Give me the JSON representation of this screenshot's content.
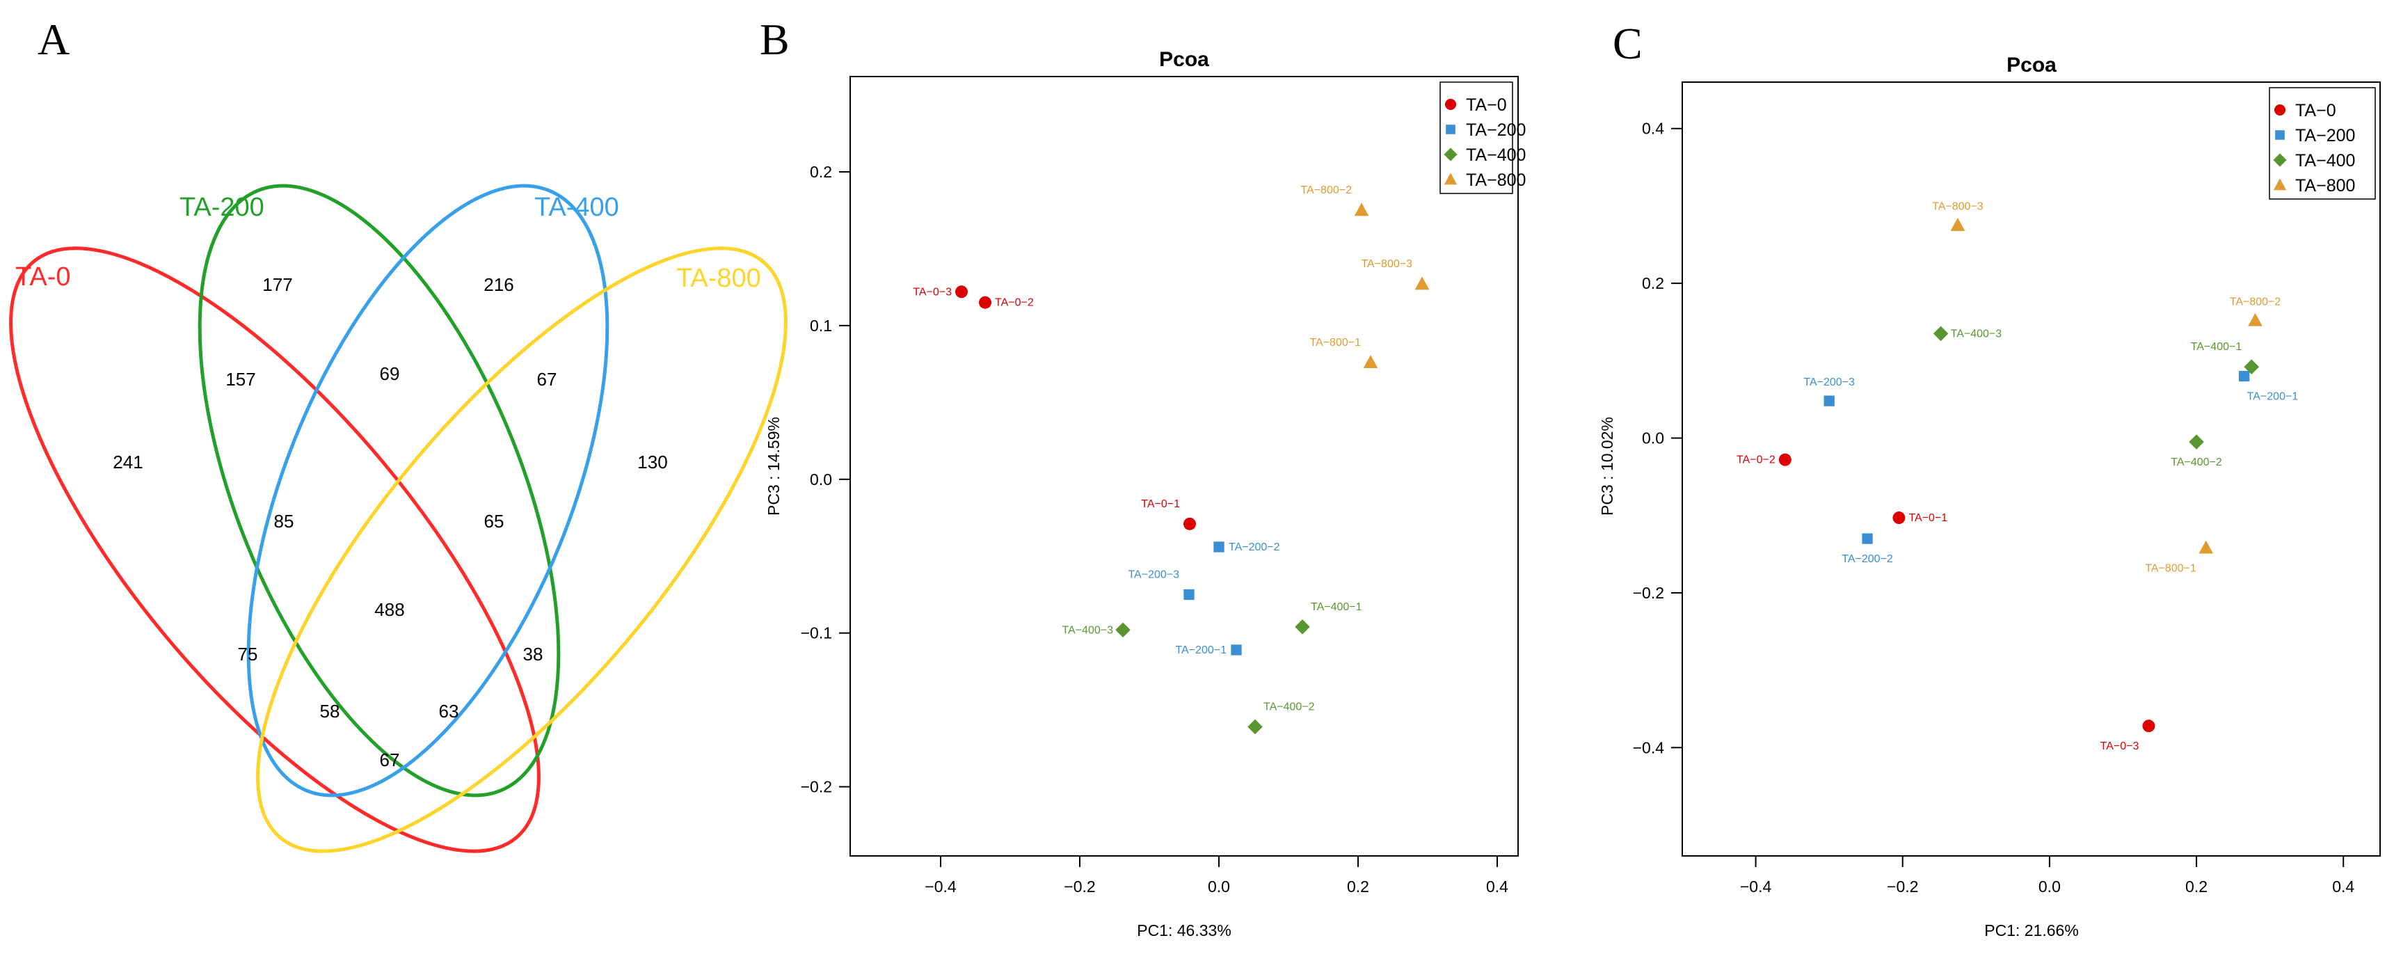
{
  "panels": {
    "a": "A",
    "b": "B",
    "c": "C"
  },
  "colors": {
    "TA-0": "#dd0000",
    "TA-200": "#3a8ed4",
    "TA-400": "#5a9630",
    "TA-800": "#e09a30"
  },
  "venn": {
    "sets": [
      {
        "name": "TA-0",
        "color": "#ff2a2a"
      },
      {
        "name": "TA-200",
        "color": "#22a02a"
      },
      {
        "name": "TA-400",
        "color": "#38a0ea"
      },
      {
        "name": "TA-800",
        "color": "#ffd42a"
      }
    ],
    "counts": [
      "241",
      "177",
      "216",
      "130",
      "157",
      "69",
      "67",
      "85",
      "65",
      "488",
      "75",
      "38",
      "58",
      "63",
      "67"
    ]
  },
  "chart_data": [
    {
      "type": "scatter",
      "title": "Pcoa",
      "xlabel": "PC1: 46.33%",
      "ylabel": "PC3 : 14.59%",
      "xlim": [
        -0.53,
        0.43
      ],
      "ylim": [
        -0.245,
        0.262
      ],
      "xticks": [
        -0.4,
        -0.2,
        0.0,
        0.2,
        0.4
      ],
      "xtick_labels": [
        "−0.4",
        "−0.2",
        "0.0",
        "0.2",
        "0.4"
      ],
      "yticks": [
        -0.2,
        -0.1,
        0.0,
        0.1,
        0.2
      ],
      "ytick_labels": [
        "−0.2",
        "−0.1",
        "0.0",
        "0.1",
        "0.2"
      ],
      "legend": [
        "TA−0",
        "TA−200",
        "TA−400",
        "TA−800"
      ],
      "legend_position": "top-right",
      "series": [
        {
          "name": "TA-0",
          "shape": "circle",
          "points": [
            {
              "x": -0.37,
              "y": 0.122,
              "label": "TA−0−3",
              "pos": "left"
            },
            {
              "x": -0.336,
              "y": 0.115,
              "label": "TA−0−2",
              "pos": "right"
            },
            {
              "x": -0.042,
              "y": -0.029,
              "label": "TA−0−1",
              "pos": "top-left"
            }
          ]
        },
        {
          "name": "TA-200",
          "shape": "square",
          "points": [
            {
              "x": 0.0,
              "y": -0.044,
              "label": "TA−200−2",
              "pos": "right"
            },
            {
              "x": -0.043,
              "y": -0.075,
              "label": "TA−200−3",
              "pos": "top-left"
            },
            {
              "x": 0.025,
              "y": -0.111,
              "label": "TA−200−1",
              "pos": "left"
            }
          ]
        },
        {
          "name": "TA-400",
          "shape": "diamond",
          "points": [
            {
              "x": -0.138,
              "y": -0.098,
              "label": "TA−400−3",
              "pos": "left"
            },
            {
              "x": 0.12,
              "y": -0.096,
              "label": "TA−400−1",
              "pos": "top-right"
            },
            {
              "x": 0.052,
              "y": -0.161,
              "label": "TA−400−2",
              "pos": "top-right"
            }
          ]
        },
        {
          "name": "TA-800",
          "shape": "triangle",
          "points": [
            {
              "x": 0.205,
              "y": 0.175,
              "label": "TA−800−2",
              "pos": "top-left"
            },
            {
              "x": 0.292,
              "y": 0.127,
              "label": "TA−800−3",
              "pos": "top-left"
            },
            {
              "x": 0.218,
              "y": 0.076,
              "label": "TA−800−1",
              "pos": "top-left"
            }
          ]
        }
      ]
    },
    {
      "type": "scatter",
      "title": "Pcoa",
      "xlabel": "PC1: 21.66%",
      "ylabel": "PC3 : 10.02%",
      "xlim": [
        -0.5,
        0.45
      ],
      "ylim": [
        -0.54,
        0.46
      ],
      "xticks": [
        -0.4,
        -0.2,
        0.0,
        0.2,
        0.4
      ],
      "xtick_labels": [
        "−0.4",
        "−0.2",
        "0.0",
        "0.2",
        "0.4"
      ],
      "yticks": [
        -0.4,
        -0.2,
        0.0,
        0.2,
        0.4
      ],
      "ytick_labels": [
        "−0.4",
        "−0.2",
        "0.0",
        "0.2",
        "0.4"
      ],
      "legend": [
        "TA−0",
        "TA−200",
        "TA−400",
        "TA−800"
      ],
      "legend_position": "top-right",
      "series": [
        {
          "name": "TA-0",
          "shape": "circle",
          "points": [
            {
              "x": -0.36,
              "y": -0.028,
              "label": "TA−0−2",
              "pos": "left"
            },
            {
              "x": -0.205,
              "y": -0.103,
              "label": "TA−0−1",
              "pos": "right"
            },
            {
              "x": 0.135,
              "y": -0.372,
              "label": "TA−0−3",
              "pos": "bottom-left"
            }
          ]
        },
        {
          "name": "TA-200",
          "shape": "square",
          "points": [
            {
              "x": -0.3,
              "y": 0.048,
              "label": "TA−200−3",
              "pos": "top"
            },
            {
              "x": -0.248,
              "y": -0.13,
              "label": "TA−200−2",
              "pos": "bottom"
            },
            {
              "x": 0.265,
              "y": 0.08,
              "label": "TA−200−1",
              "pos": "bottom-right"
            }
          ]
        },
        {
          "name": "TA-400",
          "shape": "diamond",
          "points": [
            {
              "x": -0.148,
              "y": 0.135,
              "label": "TA−400−3",
              "pos": "right"
            },
            {
              "x": 0.2,
              "y": -0.005,
              "label": "TA−400−2",
              "pos": "bottom"
            },
            {
              "x": 0.275,
              "y": 0.092,
              "label": "TA−400−1",
              "pos": "top-left"
            }
          ]
        },
        {
          "name": "TA-800",
          "shape": "triangle",
          "points": [
            {
              "x": -0.125,
              "y": 0.275,
              "label": "TA−800−3",
              "pos": "top"
            },
            {
              "x": 0.28,
              "y": 0.152,
              "label": "TA−800−2",
              "pos": "top"
            },
            {
              "x": 0.213,
              "y": -0.142,
              "label": "TA−800−1",
              "pos": "bottom-left"
            }
          ]
        }
      ]
    }
  ]
}
